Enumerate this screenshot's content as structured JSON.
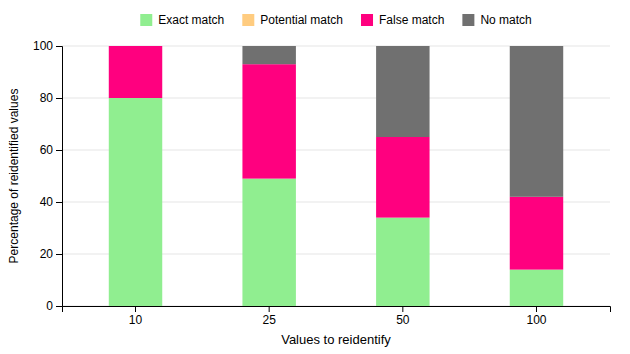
{
  "chart_data": {
    "type": "bar",
    "stacked": true,
    "categories": [
      "10",
      "25",
      "50",
      "100"
    ],
    "series": [
      {
        "name": "Exact match",
        "color": "#90EE90",
        "values": [
          80,
          49,
          34,
          14
        ]
      },
      {
        "name": "Potential match",
        "color": "#FFCC80",
        "values": [
          0,
          0,
          0,
          0
        ]
      },
      {
        "name": "False match",
        "color": "#FF007F",
        "values": [
          20,
          44,
          31,
          28
        ]
      },
      {
        "name": "No match",
        "color": "#707070",
        "values": [
          0,
          7,
          35,
          58
        ]
      }
    ],
    "xlabel": "Values to reidentify",
    "ylabel": "Percentage of reidentified values",
    "ylim": [
      0,
      100
    ],
    "yticks": [
      0,
      20,
      40,
      60,
      80,
      100
    ],
    "grid": true,
    "legend": "top"
  }
}
